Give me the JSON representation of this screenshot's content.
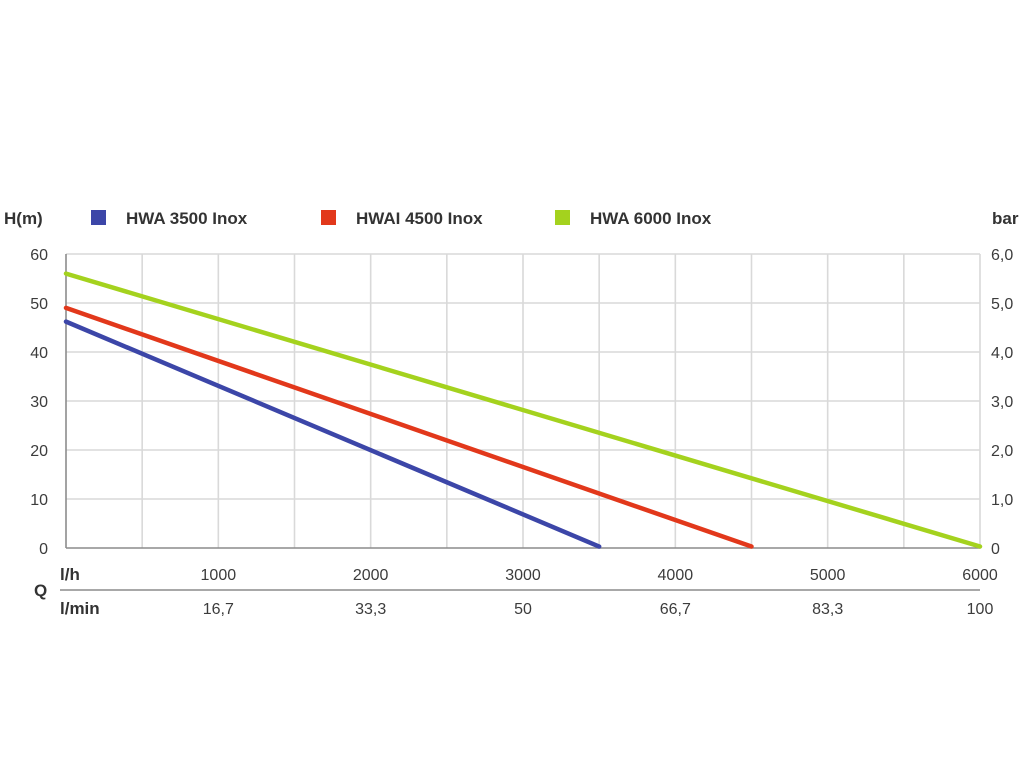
{
  "chart_data": {
    "type": "line",
    "ylabel_left": "H(m)",
    "ylabel_right": "bar",
    "xlabel": "Q",
    "x_row_lh_label": "l/h",
    "x_row_lmin_label": "l/min",
    "xlim": [
      0,
      6000
    ],
    "ylim": [
      0,
      60
    ],
    "y_ticks_left": [
      "60",
      "50",
      "40",
      "30",
      "20",
      "10",
      "0"
    ],
    "y_ticks_right": [
      "6,0",
      "5,0",
      "4,0",
      "3,0",
      "2,0",
      "1,0",
      "0"
    ],
    "x_ticks_lh": [
      "1000",
      "2000",
      "3000",
      "4000",
      "5000",
      "6000"
    ],
    "x_ticks_lmin": [
      "16,7",
      "33,3",
      "50",
      "66,7",
      "83,3",
      "100"
    ],
    "grid": true,
    "legend_position": "top",
    "series": [
      {
        "name": "HWA 3500 Inox",
        "color": "#3c46a8",
        "points": [
          [
            0,
            46.2
          ],
          [
            3500,
            0.3
          ]
        ]
      },
      {
        "name": "HWAI 4500 Inox",
        "color": "#e2381b",
        "points": [
          [
            0,
            49.0
          ],
          [
            4500,
            0.3
          ]
        ]
      },
      {
        "name": "HWA 6000 Inox",
        "color": "#a4d21e",
        "points": [
          [
            0,
            56.0
          ],
          [
            6000,
            0.3
          ]
        ]
      }
    ]
  }
}
